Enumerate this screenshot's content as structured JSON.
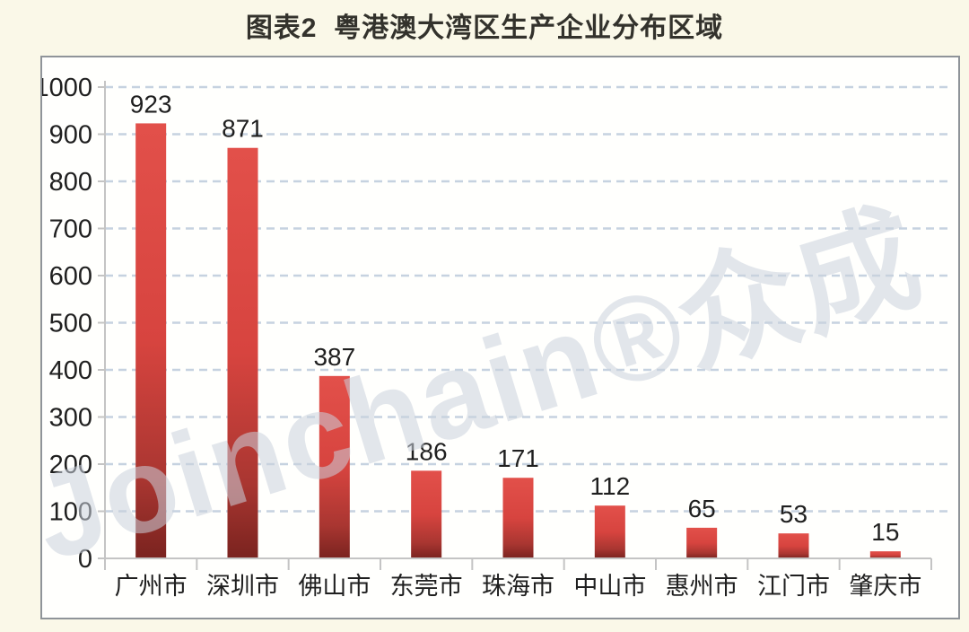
{
  "header": {
    "title": "图表2  粤港澳大湾区生产企业分布区域"
  },
  "watermark": {
    "text": "Joinchain®众成"
  },
  "colors": {
    "page_background": "#faf8e8",
    "panel_background": "#fffffd",
    "panel_border": "#8f9499",
    "bar_top": "#e2504a",
    "bar_mid": "#d7443f",
    "bar_low": "#a93631",
    "bar_bottom": "#7a231f",
    "gridline": "#c6d2e0",
    "axis_line": "#c4c4c4",
    "label_text": "#1f1f1f"
  },
  "chart_data": {
    "type": "bar",
    "title": "图表2  粤港澳大湾区生产企业分布区域",
    "categories": [
      "广州市",
      "深圳市",
      "佛山市",
      "东莞市",
      "珠海市",
      "中山市",
      "惠州市",
      "江门市",
      "肇庆市"
    ],
    "values": [
      923,
      871,
      387,
      186,
      171,
      112,
      65,
      53,
      15
    ],
    "xlabel": "",
    "ylabel": "",
    "ylim": [
      0,
      1000
    ],
    "ytick_interval": 100,
    "ytick_labels": [
      "0",
      "100",
      "200",
      "300",
      "400",
      "500",
      "600",
      "700",
      "800",
      "900",
      "1000"
    ],
    "grid": "horizontal-dashed",
    "legend": "none",
    "bar_value_labels_shown": true
  }
}
